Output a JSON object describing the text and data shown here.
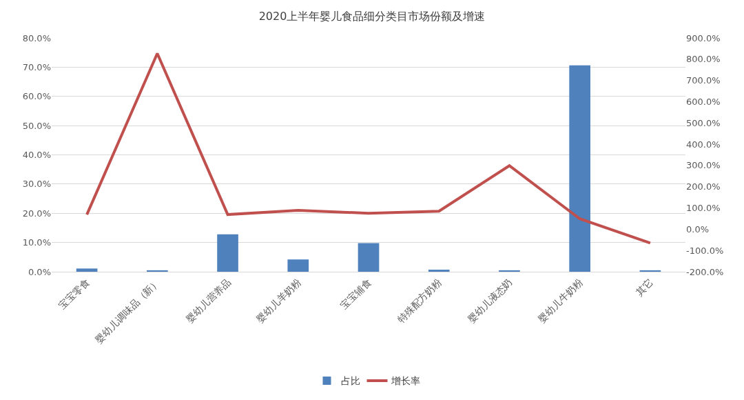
{
  "chart_data": {
    "type": "bar",
    "title": "2020上半年婴儿食品细分类目市场份额及增速",
    "categories": [
      "宝宝零食",
      "婴幼儿调味品（新）",
      "婴幼儿营养品",
      "婴幼儿羊奶粉",
      "宝宝辅食",
      "特殊配方奶粉",
      "婴幼儿液态奶",
      "婴幼儿牛奶粉",
      "其它"
    ],
    "series": [
      {
        "name": "占比",
        "color": "#4f81bd",
        "values": [
          1.1,
          0.5,
          12.8,
          4.2,
          9.8,
          0.7,
          0.5,
          70.6,
          0.5
        ]
      },
      {
        "name": "增长率",
        "type": "line",
        "axis": "y2",
        "color": "#c0504d",
        "values": [
          69,
          827,
          69,
          89,
          75,
          85,
          299,
          49,
          -65
        ]
      }
    ],
    "ylim": [
      0,
      80
    ],
    "yticks": [
      {
        "value": 0,
        "label": "0.0%"
      },
      {
        "value": 10,
        "label": "10.0%"
      },
      {
        "value": 20,
        "label": "20.0%"
      },
      {
        "value": 30,
        "label": "30.0%"
      },
      {
        "value": 40,
        "label": "40.0%"
      },
      {
        "value": 50,
        "label": "50.0%"
      },
      {
        "value": 60,
        "label": "60.0%"
      },
      {
        "value": 70,
        "label": "70.0%"
      },
      {
        "value": 80,
        "label": "80.0%"
      }
    ],
    "y2lim": [
      -200,
      900
    ],
    "y2ticks": [
      {
        "value": -200,
        "label": "-200.0%"
      },
      {
        "value": -100,
        "label": "-100.0%"
      },
      {
        "value": 0,
        "label": "0.0%"
      },
      {
        "value": 100,
        "label": "100.0%"
      },
      {
        "value": 200,
        "label": "200.0%"
      },
      {
        "value": 300,
        "label": "300.0%"
      },
      {
        "value": 400,
        "label": "400.0%"
      },
      {
        "value": 500,
        "label": "500.0%"
      },
      {
        "value": 600,
        "label": "600.0%"
      },
      {
        "value": 700,
        "label": "700.0%"
      },
      {
        "value": 800,
        "label": "800.0%"
      },
      {
        "value": 900,
        "label": "900.0%"
      }
    ],
    "grid": "y",
    "legend": "bottom",
    "marker": "none",
    "line_style": "solid"
  }
}
